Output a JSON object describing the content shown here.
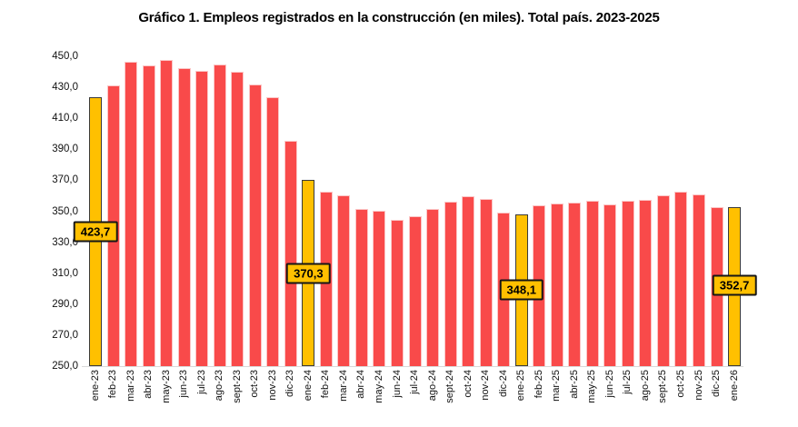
{
  "title": "Gráfico 1. Empleos registrados en la construcción (en miles). Total país. 2023-2025",
  "colors": {
    "bar_fill": "#f94a4a",
    "bar_edge": "#fbc6c6",
    "highlight_fill": "#ffc000",
    "highlight_edge": "#3a3a3a",
    "callout_bg": "#ffc000",
    "callout_border": "#161616",
    "axis_line": "#d9d9d9",
    "text": "#000000",
    "background": "#ffffff"
  },
  "chart_data": {
    "type": "bar",
    "title": "Gráfico 1. Empleos registrados en la construcción (en miles). Total país. 2023-2025",
    "xlabel": "",
    "ylabel": "",
    "ylim": [
      250,
      450
    ],
    "ytick_step": 20,
    "ytick_labels": [
      "450,0",
      "430,0",
      "410,0",
      "390,0",
      "370,0",
      "350,0",
      "330,0",
      "310,0",
      "290,0",
      "270,0",
      "250,0"
    ],
    "grid": false,
    "legend": false,
    "categories": [
      "ene-23",
      "feb-23",
      "mar-23",
      "abr-23",
      "may-23",
      "jun-23",
      "jul-23",
      "ago-23",
      "sept-23",
      "oct-23",
      "nov-23",
      "dic-23",
      "ene-24",
      "feb-24",
      "mar-24",
      "abr-24",
      "may-24",
      "jun-24",
      "jul-24",
      "ago-24",
      "sept-24",
      "oct-24",
      "nov-24",
      "dic-24",
      "ene-25",
      "feb-25",
      "mar-25",
      "abr-25",
      "may-25",
      "jun-25",
      "jul-25",
      "ago-25",
      "sept-25",
      "oct-25",
      "nov-25",
      "dic-25",
      "ene-26"
    ],
    "values": [
      423.7,
      431.5,
      446.5,
      444.0,
      447.5,
      442.5,
      440.5,
      445.0,
      440.0,
      432.0,
      423.5,
      395.5,
      370.3,
      362.5,
      360.5,
      351.3,
      350.4,
      344.6,
      346.8,
      351.5,
      356.0,
      359.5,
      358.0,
      349.0,
      348.1,
      354.0,
      355.0,
      355.5,
      357.0,
      354.5,
      357.0,
      357.5,
      360.5,
      362.5,
      361.0,
      352.5,
      352.7
    ],
    "highlight_indices": [
      0,
      12,
      24,
      36
    ],
    "annotations": [
      {
        "index": 0,
        "text": "423,7",
        "y_value": 337
      },
      {
        "index": 12,
        "text": "370,3",
        "y_value": 310
      },
      {
        "index": 24,
        "text": "348,1",
        "y_value": 299
      },
      {
        "index": 36,
        "text": "352,7",
        "y_value": 302
      }
    ]
  }
}
